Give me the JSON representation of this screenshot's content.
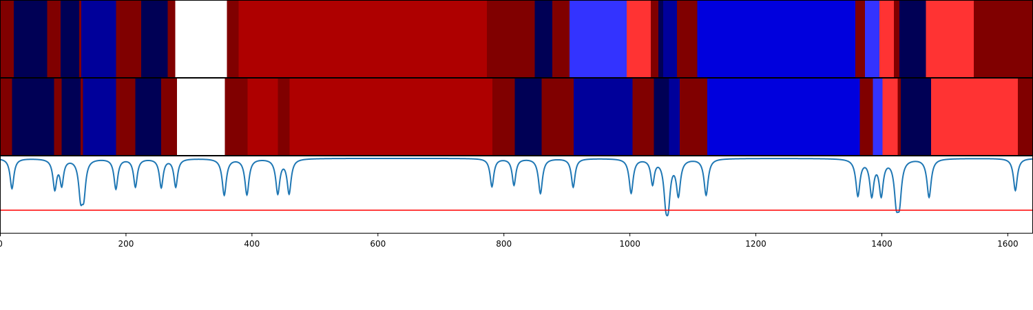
{
  "chart_data": {
    "type": "heatmap",
    "title": "",
    "xlabel": "",
    "ylabel": "",
    "xlim": [
      0,
      1640
    ],
    "x_ticks": [
      0,
      200,
      400,
      600,
      800,
      1000,
      1200,
      1400,
      1600
    ],
    "grid": false,
    "legend": "none",
    "colormap": "seismic (diverging blue-white-red)",
    "tracks": [
      {
        "segments": [
          {
            "start": 0,
            "end": 22,
            "color": "#800000"
          },
          {
            "start": 22,
            "end": 75,
            "color": "#000055"
          },
          {
            "start": 75,
            "end": 96,
            "color": "#800000"
          },
          {
            "start": 96,
            "end": 126,
            "color": "#000055"
          },
          {
            "start": 126,
            "end": 129,
            "color": "#800000"
          },
          {
            "start": 129,
            "end": 184,
            "color": "#00009a"
          },
          {
            "start": 184,
            "end": 224,
            "color": "#800000"
          },
          {
            "start": 224,
            "end": 266,
            "color": "#000055"
          },
          {
            "start": 266,
            "end": 278,
            "color": "#800000"
          },
          {
            "start": 278,
            "end": 360,
            "color": "#ffffff"
          },
          {
            "start": 360,
            "end": 379,
            "color": "#800000"
          },
          {
            "start": 379,
            "end": 773,
            "color": "#ae0000"
          },
          {
            "start": 773,
            "end": 849,
            "color": "#800000"
          },
          {
            "start": 849,
            "end": 877,
            "color": "#000055"
          },
          {
            "start": 877,
            "end": 904,
            "color": "#800000"
          },
          {
            "start": 904,
            "end": 995,
            "color": "#3333ff"
          },
          {
            "start": 995,
            "end": 1033,
            "color": "#ff3333"
          },
          {
            "start": 1033,
            "end": 1045,
            "color": "#800000"
          },
          {
            "start": 1045,
            "end": 1053,
            "color": "#000055"
          },
          {
            "start": 1053,
            "end": 1075,
            "color": "#00009a"
          },
          {
            "start": 1075,
            "end": 1107,
            "color": "#800000"
          },
          {
            "start": 1107,
            "end": 1358,
            "color": "#0000dd"
          },
          {
            "start": 1358,
            "end": 1373,
            "color": "#800000"
          },
          {
            "start": 1373,
            "end": 1396,
            "color": "#3333ff"
          },
          {
            "start": 1396,
            "end": 1419,
            "color": "#ff3333"
          },
          {
            "start": 1419,
            "end": 1428,
            "color": "#800000"
          },
          {
            "start": 1428,
            "end": 1470,
            "color": "#000055"
          },
          {
            "start": 1470,
            "end": 1546,
            "color": "#ff3333"
          },
          {
            "start": 1546,
            "end": 1640,
            "color": "#800000"
          }
        ]
      },
      {
        "segments": [
          {
            "start": 0,
            "end": 19,
            "color": "#800000"
          },
          {
            "start": 19,
            "end": 86,
            "color": "#000055"
          },
          {
            "start": 86,
            "end": 98,
            "color": "#800000"
          },
          {
            "start": 98,
            "end": 128,
            "color": "#000055"
          },
          {
            "start": 128,
            "end": 132,
            "color": "#800000"
          },
          {
            "start": 132,
            "end": 184,
            "color": "#00009a"
          },
          {
            "start": 184,
            "end": 215,
            "color": "#800000"
          },
          {
            "start": 215,
            "end": 256,
            "color": "#000055"
          },
          {
            "start": 256,
            "end": 281,
            "color": "#800000"
          },
          {
            "start": 281,
            "end": 357,
            "color": "#ffffff"
          },
          {
            "start": 357,
            "end": 393,
            "color": "#800000"
          },
          {
            "start": 393,
            "end": 441,
            "color": "#ae0000"
          },
          {
            "start": 441,
            "end": 460,
            "color": "#800000"
          },
          {
            "start": 460,
            "end": 782,
            "color": "#ae0000"
          },
          {
            "start": 782,
            "end": 817,
            "color": "#800000"
          },
          {
            "start": 817,
            "end": 860,
            "color": "#000055"
          },
          {
            "start": 860,
            "end": 911,
            "color": "#800000"
          },
          {
            "start": 911,
            "end": 1004,
            "color": "#00009a"
          },
          {
            "start": 1004,
            "end": 1038,
            "color": "#800000"
          },
          {
            "start": 1038,
            "end": 1062,
            "color": "#000055"
          },
          {
            "start": 1062,
            "end": 1079,
            "color": "#00009a"
          },
          {
            "start": 1079,
            "end": 1123,
            "color": "#800000"
          },
          {
            "start": 1123,
            "end": 1365,
            "color": "#0000dd"
          },
          {
            "start": 1365,
            "end": 1386,
            "color": "#800000"
          },
          {
            "start": 1386,
            "end": 1401,
            "color": "#3333ff"
          },
          {
            "start": 1401,
            "end": 1425,
            "color": "#ff3333"
          },
          {
            "start": 1425,
            "end": 1430,
            "color": "#800000"
          },
          {
            "start": 1430,
            "end": 1478,
            "color": "#000055"
          },
          {
            "start": 1478,
            "end": 1616,
            "color": "#ff3333"
          },
          {
            "start": 1616,
            "end": 1640,
            "color": "#800000"
          }
        ]
      }
    ],
    "signal": {
      "color": "#1f77b4",
      "baseline": 0,
      "ylim": [
        -1.45,
        0.05
      ],
      "dips": [
        {
          "x": 19,
          "depth": 0.58
        },
        {
          "x": 87,
          "depth": 0.57
        },
        {
          "x": 98,
          "depth": 0.48
        },
        {
          "x": 128,
          "depth": 0.66
        },
        {
          "x": 133,
          "depth": 0.6
        },
        {
          "x": 184,
          "depth": 0.58
        },
        {
          "x": 215,
          "depth": 0.54
        },
        {
          "x": 256,
          "depth": 0.55
        },
        {
          "x": 279,
          "depth": 0.54
        },
        {
          "x": 356,
          "depth": 0.7
        },
        {
          "x": 392,
          "depth": 0.69
        },
        {
          "x": 441,
          "depth": 0.66
        },
        {
          "x": 459,
          "depth": 0.66
        },
        {
          "x": 781,
          "depth": 0.54
        },
        {
          "x": 816,
          "depth": 0.51
        },
        {
          "x": 858,
          "depth": 0.67
        },
        {
          "x": 910,
          "depth": 0.55
        },
        {
          "x": 1002,
          "depth": 0.66
        },
        {
          "x": 1036,
          "depth": 0.47
        },
        {
          "x": 1057,
          "depth": 0.65
        },
        {
          "x": 1061,
          "depth": 0.69
        },
        {
          "x": 1077,
          "depth": 0.68
        },
        {
          "x": 1121,
          "depth": 0.7
        },
        {
          "x": 1362,
          "depth": 0.7
        },
        {
          "x": 1384,
          "depth": 0.68
        },
        {
          "x": 1399,
          "depth": 0.67
        },
        {
          "x": 1423,
          "depth": 0.71
        },
        {
          "x": 1428,
          "depth": 0.7
        },
        {
          "x": 1475,
          "depth": 0.74
        },
        {
          "x": 1612,
          "depth": 0.62
        }
      ]
    },
    "threshold": {
      "y": -1.0,
      "color": "#ff0000"
    }
  }
}
